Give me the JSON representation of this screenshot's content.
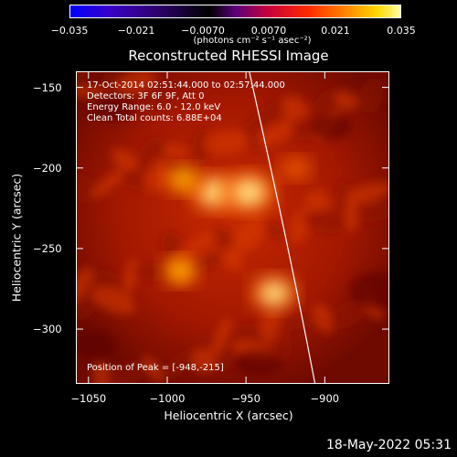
{
  "colorbar": {
    "ticks": [
      "−0.035",
      "−0.021",
      "−0.0070",
      "0.0070",
      "0.021",
      "0.035"
    ],
    "unit_label": "(photons cm⁻² s⁻¹ asec⁻²)",
    "range": [
      -0.035,
      0.035
    ]
  },
  "info": {
    "time_range": "17-Oct-2014 02:51:44.000 to 02:57:44.000",
    "detectors": "Detectors: 3F 6F 9F, Att 0",
    "energy": "Energy Range: 6.0 - 12.0 keV",
    "clean": "Clean    Total counts: 6.88E+04",
    "peak": "Position of Peak = [-948,-215]"
  },
  "footer": {
    "date": "18-May-2022 05:31"
  },
  "chart_data": {
    "type": "heatmap",
    "title": "Reconstructed RHESSI Image",
    "xlabel": "Heliocentric X (arcsec)",
    "ylabel": "Heliocentric Y (arcsec)",
    "xlim": [
      -1058,
      -859
    ],
    "ylim": [
      -334,
      -140
    ],
    "x_ticks": [
      -1050,
      -1000,
      -950,
      -900
    ],
    "y_ticks": [
      -150,
      -200,
      -250,
      -300
    ],
    "x_tick_labels": [
      "−1050",
      "−1000",
      "−950",
      "−900"
    ],
    "y_tick_labels": [
      "−150",
      "−200",
      "−250",
      "−300"
    ],
    "sources": [
      {
        "x": -970,
        "y": -215,
        "level": 0.85
      },
      {
        "x": -948,
        "y": -215,
        "level": 1.0
      },
      {
        "x": -990,
        "y": -207,
        "level": 0.5
      },
      {
        "x": -932,
        "y": -278,
        "level": 0.8
      },
      {
        "x": -992,
        "y": -264,
        "level": 0.5
      },
      {
        "x": -918,
        "y": -200,
        "level": 0.25
      }
    ],
    "peak": [
      -948,
      -215
    ],
    "limb_line": true
  }
}
